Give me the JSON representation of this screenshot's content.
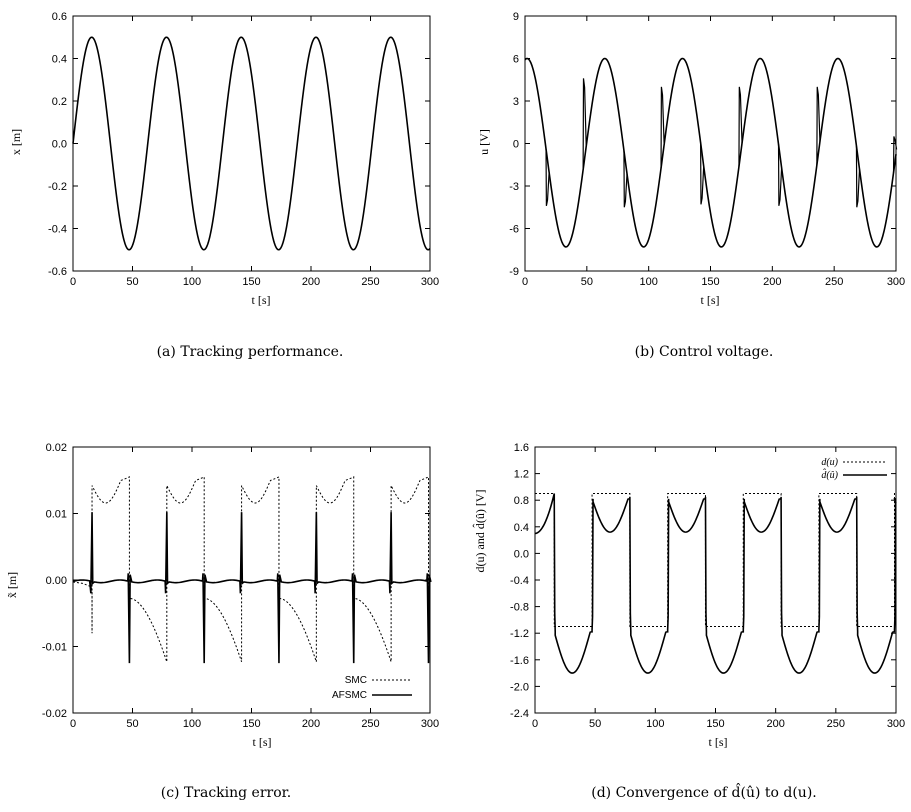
{
  "chart_data": [
    {
      "id": "a",
      "type": "line",
      "caption": "(a) Tracking performance.",
      "xlabel": "t [s]",
      "ylabel": "x [m]",
      "xlim": [
        0,
        300
      ],
      "ylim": [
        -0.6,
        0.6
      ],
      "xticks": [
        0,
        50,
        100,
        150,
        200,
        250,
        300
      ],
      "yticks": [
        -0.6,
        -0.4,
        -0.2,
        0.0,
        0.2,
        0.4,
        0.6
      ],
      "ytick_labels": [
        "-0.6",
        "-0.4",
        "-0.2",
        "0.0",
        "0.2",
        "0.4",
        "0.6"
      ],
      "series": [
        {
          "style": "solid",
          "amplitude": 0.5,
          "period_s": 62.8,
          "description": "x(t) = 0.5 sin(t/10)"
        }
      ]
    },
    {
      "id": "b",
      "type": "line",
      "caption": "(b) Control voltage.",
      "xlabel": "t [s]",
      "ylabel": "u [V]",
      "xlim": [
        0,
        300
      ],
      "ylim": [
        -9,
        9
      ],
      "xticks": [
        0,
        50,
        100,
        150,
        200,
        250,
        300
      ],
      "yticks": [
        -9,
        -6,
        -3,
        0,
        3,
        6,
        9
      ],
      "ytick_labels": [
        "-9",
        "-6",
        "-3",
        "0",
        "3",
        "6",
        "9"
      ],
      "series": [
        {
          "style": "solid",
          "max": 6.0,
          "min": -7.3,
          "spike_times_s": [
            17,
            47,
            80,
            110,
            142,
            173,
            205,
            236,
            268,
            298
          ],
          "spike_values": [
            -4.4,
            4.6,
            -4.5,
            4.0,
            -4.3,
            4.0,
            -4.4,
            4.0,
            -4.5,
            0.5
          ]
        }
      ]
    },
    {
      "id": "c",
      "type": "line",
      "caption": "(c) Tracking error.",
      "xlabel": "t [s]",
      "ylabel": "x̃ [m]",
      "xlim": [
        0,
        300
      ],
      "ylim": [
        -0.02,
        0.02
      ],
      "xticks": [
        0,
        50,
        100,
        150,
        200,
        250,
        300
      ],
      "yticks": [
        -0.02,
        -0.01,
        0.0,
        0.01,
        0.02
      ],
      "ytick_labels": [
        "-0.02",
        "-0.01",
        "0.00",
        "0.01",
        "0.02"
      ],
      "legend": "bottom-right",
      "series": [
        {
          "name": "SMC",
          "style": "dashed",
          "positive_band": [
            0.0115,
            0.0155
          ],
          "negative_band": [
            -0.0125,
            -0.0025
          ]
        },
        {
          "name": "AFSMC",
          "style": "solid",
          "range": [
            -0.0125,
            0.0105
          ]
        }
      ]
    },
    {
      "id": "d",
      "type": "line",
      "caption": "(d) Convergence of d̂(û) to d(u).",
      "xlabel": "t [s]",
      "ylabel": "d(u) and d̂(û) [V]",
      "xlim": [
        0,
        300
      ],
      "ylim": [
        -2.4,
        1.6
      ],
      "xticks": [
        0,
        50,
        100,
        150,
        200,
        250,
        300
      ],
      "yticks": [
        -2.4,
        -2.0,
        -1.6,
        -1.2,
        -0.8,
        -0.4,
        0.0,
        0.4,
        0.8,
        1.2,
        1.6
      ],
      "ytick_labels": [
        "-2.4",
        "-2.0",
        "-1.6",
        "-1.2",
        "-0.8",
        "-0.4",
        "0.0",
        "0.4",
        "0.8",
        "1.2",
        "1.6"
      ],
      "legend": "top-right",
      "series": [
        {
          "name": "d(u)",
          "style": "dashed",
          "high": 0.9,
          "low": -1.1
        },
        {
          "name": "d̂(û)",
          "style": "solid",
          "min": -1.8,
          "max": 0.9
        }
      ]
    }
  ]
}
